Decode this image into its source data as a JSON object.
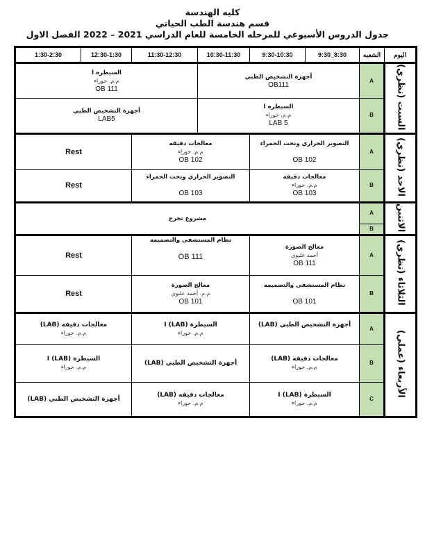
{
  "header": {
    "line1": "كليه الهندسة",
    "line2": "قسم هندسة الطب الحياتي",
    "line3": "جدول الدروس الأسبوعي للمرحله الخامسة للعام الدراسي 2021 – 2022 الفصل الاول"
  },
  "table_header": {
    "day": "اليوم",
    "section": "الشعبه",
    "times": [
      "8:30_9:30",
      "9:30-10:30",
      "10:30-11:30",
      "11:30-12:30",
      "12:30-1:30",
      "1:30-2:30"
    ]
  },
  "colors": {
    "section_bg": "#c4dfb1"
  },
  "days": {
    "sat": {
      "label": "السبت (نظري)",
      "A": {
        "right": {
          "s": "أجهزة التشخيص الطبي",
          "r": "OB111"
        },
        "left": {
          "s": "السيطره I",
          "i": "م.م. حوراء",
          "r": "OB 111"
        }
      },
      "B": {
        "right": {
          "s": "السيطره I",
          "i": "م.م. حوراء",
          "r": "LAB 5"
        },
        "left": {
          "s": "أجهزة التشخيص الطبي",
          "r": "LAB5"
        }
      }
    },
    "sun": {
      "label": "الاحد (نظري)",
      "A": {
        "right": {
          "s": "التصوير الحراري وتحت الحمراء",
          "r": "OB 102"
        },
        "mid": {
          "s": "معالجات دقيقه",
          "i": "م.م. حوراء",
          "r": "OB 102"
        },
        "left": "Rest"
      },
      "B": {
        "right": {
          "s": "معالجات دقيقه",
          "i": "م.م. حوراء",
          "r": "OB 103"
        },
        "mid": {
          "s": "التصوير الحراري وتحت الحمراء",
          "r": "OB 103"
        },
        "left": "Rest"
      }
    },
    "mon": {
      "label": "الاثنين",
      "all": "مشروع تخرج"
    },
    "tue": {
      "label": "الثلاثاء (نظري)",
      "A": {
        "right": {
          "s": "معالج الصورة",
          "i": "أحمد عليوي",
          "r": "OB 111"
        },
        "mid": {
          "s": "نظام المستشفى والتصميمه",
          "r": "OB 111"
        },
        "left": "Rest"
      },
      "B": {
        "right": {
          "s": "نظام المستشفى والتصميمه",
          "r": "OB 101"
        },
        "mid": {
          "s": "معالج الصورة",
          "i": "م.م. أحمد عليوي",
          "r": "OB 101"
        },
        "left": "Rest"
      }
    },
    "wed": {
      "label": "الأربعاء (عملي)",
      "A": {
        "right": {
          "s": "أجهزة التشخيص الطبي (LAB)"
        },
        "mid": {
          "s": "السيطرة I (LAB)",
          "i": "م.م. حوراء"
        },
        "left": {
          "s": "معالجات دقيقه (LAB)",
          "i": "م.م. حوراء"
        }
      },
      "B": {
        "right": {
          "s": "معالجات دقيقه (LAB)",
          "i": "م.م. حوراء"
        },
        "mid": {
          "s": "أجهزة التشخيص الطبي (LAB)"
        },
        "left": {
          "s": "السيطرة I (LAB)",
          "i": "م.م. حوراء"
        }
      },
      "C": {
        "right": {
          "s": "السيطرة I (LAB)",
          "i": "م.م. حوراء"
        },
        "mid": {
          "s": "معالجات دقيقه (LAB)",
          "i": "م.م. حوراء"
        },
        "left": {
          "s": "أجهزة التشخيص الطبي (LAB)"
        }
      }
    }
  },
  "sections": [
    "A",
    "B",
    "C"
  ]
}
